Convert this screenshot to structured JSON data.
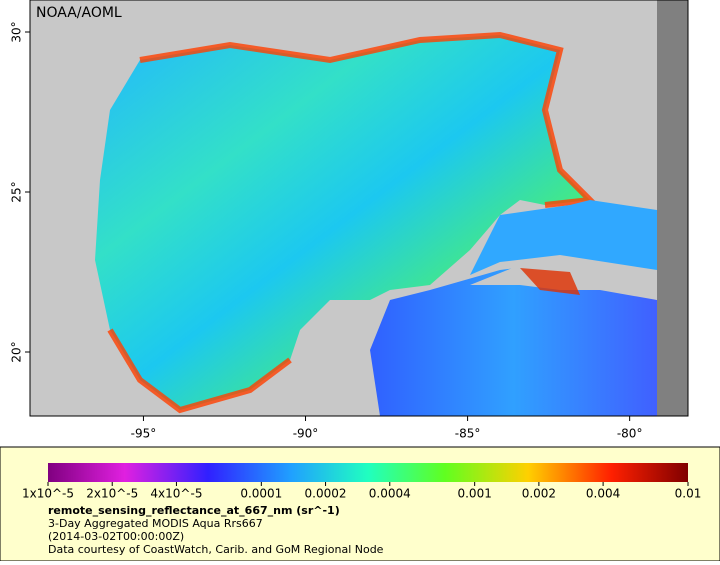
{
  "map": {
    "credit": "NOAA/AOML",
    "lonlim": [
      -98.5,
      -78.2
    ],
    "latlim": [
      18.0,
      31.0
    ],
    "lat_ticks": [
      {
        "value": 20,
        "label": "20°"
      },
      {
        "value": 25,
        "label": "25°"
      },
      {
        "value": 30,
        "label": "30°"
      }
    ],
    "lon_ticks": [
      {
        "value": -95,
        "label": "-95°"
      },
      {
        "value": -90,
        "label": "-90°"
      },
      {
        "value": -85,
        "label": "-85°"
      },
      {
        "value": -80,
        "label": "-80°"
      }
    ]
  },
  "legend": {
    "lim": [
      1e-05,
      0.01
    ],
    "log": true,
    "ticks": [
      {
        "value": 1e-05,
        "label": "1x10^-5"
      },
      {
        "value": 2e-05,
        "label": "2x10^-5"
      },
      {
        "value": 4e-05,
        "label": "4x10^-5"
      },
      {
        "value": 0.0001,
        "label": "0.0001"
      },
      {
        "value": 0.0002,
        "label": "0.0002"
      },
      {
        "value": 0.0004,
        "label": "0.0004"
      },
      {
        "value": 0.001,
        "label": "0.001"
      },
      {
        "value": 0.002,
        "label": "0.002"
      },
      {
        "value": 0.004,
        "label": "0.004"
      },
      {
        "value": 0.01,
        "label": "0.01"
      }
    ],
    "title": "remote_sensing_reflectance_at_667_nm (sr^-1)",
    "lines": [
      "3-Day Aggregated MODIS Aqua Rrs667",
      "(2014-03-02T00:00:00Z)",
      "Data courtesy of CoastWatch, Carib. and GoM Regional Node"
    ]
  }
}
